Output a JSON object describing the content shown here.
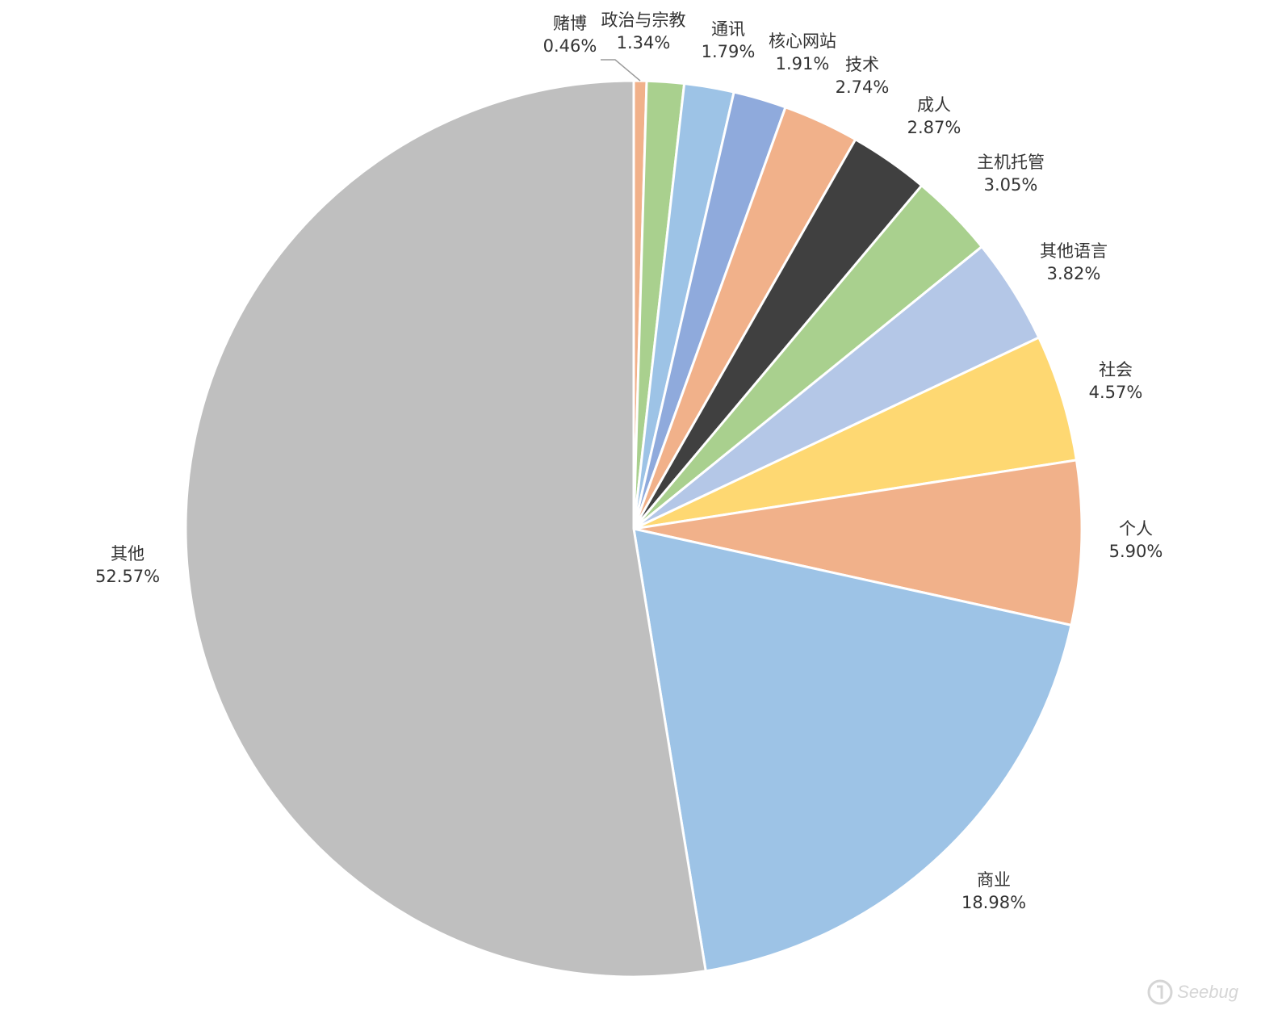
{
  "chart_data": {
    "type": "pie",
    "slices": [
      {
        "label": "赌博",
        "value": 0.46,
        "value_label": "0.46%",
        "color": "#F1B18A"
      },
      {
        "label": "政治与宗教",
        "value": 1.34,
        "value_label": "1.34%",
        "color": "#A9D08E"
      },
      {
        "label": "通讯",
        "value": 1.79,
        "value_label": "1.79%",
        "color": "#9DC3E6"
      },
      {
        "label": "核心网站",
        "value": 1.91,
        "value_label": "1.91%",
        "color": "#8FAADC"
      },
      {
        "label": "技术",
        "value": 2.74,
        "value_label": "2.74%",
        "color": "#F1B18A"
      },
      {
        "label": "成人",
        "value": 2.87,
        "value_label": "2.87%",
        "color": "#404040"
      },
      {
        "label": "主机托管",
        "value": 3.05,
        "value_label": "3.05%",
        "color": "#A9D08E"
      },
      {
        "label": "其他语言",
        "value": 3.82,
        "value_label": "3.82%",
        "color": "#B4C7E7"
      },
      {
        "label": "社会",
        "value": 4.57,
        "value_label": "4.57%",
        "color": "#FED872"
      },
      {
        "label": "个人",
        "value": 5.9,
        "value_label": "5.90%",
        "color": "#F1B18A"
      },
      {
        "label": "商业",
        "value": 18.98,
        "value_label": "18.98%",
        "color": "#9DC3E6"
      },
      {
        "label": "其他",
        "value": 52.57,
        "value_label": "52.57%",
        "color": "#BFBFBF"
      }
    ],
    "start": "top",
    "direction": "clockwise"
  },
  "watermark": {
    "text": "Seebug"
  }
}
